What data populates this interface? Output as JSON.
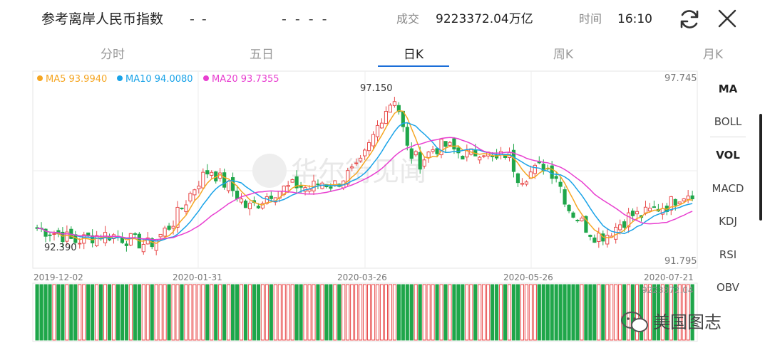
{
  "header": {
    "title": "参考离岸人民币指数",
    "change1": "- -",
    "change2": "- - - -",
    "volume_label": "成交",
    "volume_value": "9223372.04万亿",
    "time_label": "时间",
    "time_value": "16:10"
  },
  "tabs": [
    {
      "label": "分时",
      "active": false
    },
    {
      "label": "五日",
      "active": false
    },
    {
      "label": "日K",
      "active": true
    },
    {
      "label": "周K",
      "active": false
    },
    {
      "label": "月K",
      "active": false
    }
  ],
  "indicators": [
    {
      "label": "MA",
      "bold": true
    },
    {
      "label": "BOLL",
      "bold": false
    },
    {
      "label": "VOL",
      "bold": true
    },
    {
      "label": "MACD",
      "bold": false
    },
    {
      "label": "KDJ",
      "bold": false
    },
    {
      "label": "RSI",
      "bold": false
    },
    {
      "label": "OBV",
      "bold": false
    }
  ],
  "ma_legend": [
    {
      "label": "MA5 93.9940",
      "color": "#f5a623"
    },
    {
      "label": "MA10 94.0080",
      "color": "#1aa3e8"
    },
    {
      "label": "MA20 93.7355",
      "color": "#e83fd0"
    }
  ],
  "price_axis": {
    "max": "97.745",
    "min": "91.795",
    "high_label": "97.150",
    "low_label": "92.390",
    "max_value": 97.745,
    "min_value": 91.795
  },
  "date_axis": [
    "2019-12-02",
    "2020-01-31",
    "2020-03-26",
    "2020-05-26",
    "2020-07-21"
  ],
  "volume_max_label": "9223372.04",
  "watermark": {
    "text": "华尔街见闻",
    "text2": "美国图志"
  },
  "colors": {
    "up": "#e84a4a",
    "down": "#1fa64a",
    "ma5": "#f5a623",
    "ma10": "#1aa3e8",
    "ma20": "#e83fd0",
    "active_tab": "#1a6ed8"
  },
  "chart_data": {
    "type": "candlestick",
    "x_range": [
      "2019-12-02",
      "2020-07-21"
    ],
    "close_path": [
      93.0,
      92.9,
      92.8,
      92.6,
      92.7,
      92.8,
      92.8,
      92.7,
      92.6,
      92.5,
      92.8,
      93.2,
      93.8,
      94.4,
      94.8,
      94.4,
      94.1,
      93.6,
      93.8,
      94.1,
      94.2,
      94.3,
      94.2,
      94.4,
      94.3,
      94.6,
      94.8,
      95.6,
      96.5,
      97.0,
      95.3,
      95.0,
      95.4,
      95.5,
      95.3,
      95.2,
      95.4,
      95.0,
      95.3,
      94.5,
      94.7,
      94.9,
      94.6,
      93.6,
      93.2,
      92.8,
      92.8,
      93.1,
      93.4,
      93.4,
      93.6,
      93.7,
      94.0,
      94.1
    ]
  }
}
